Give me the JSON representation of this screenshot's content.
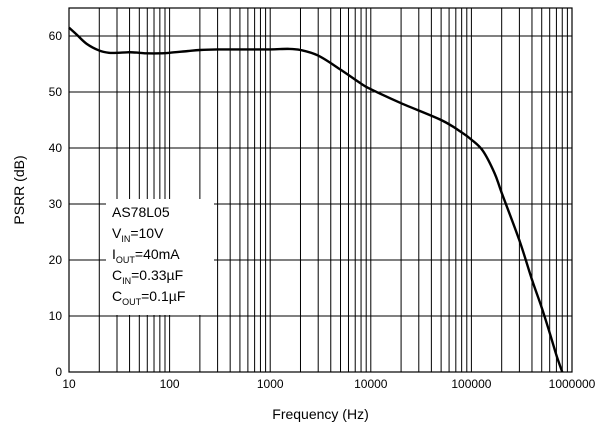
{
  "chart_data": {
    "type": "line",
    "title": "",
    "xlabel": "Frequency (Hz)",
    "ylabel": "PSRR (dB)",
    "x_scale": "log",
    "xlim": [
      10,
      1000000
    ],
    "ylim": [
      0,
      65
    ],
    "grid": true,
    "x_ticks": [
      10,
      100,
      1000,
      10000,
      100000,
      1000000
    ],
    "x_tick_labels": [
      "10",
      "100",
      "1000",
      "10000",
      "100000",
      "1000000"
    ],
    "y_ticks": [
      0,
      10,
      20,
      30,
      40,
      50,
      60
    ],
    "y_tick_labels": [
      "0",
      "10",
      "20",
      "30",
      "40",
      "50",
      "60"
    ],
    "series": [
      {
        "color": "#000000",
        "points": [
          [
            10,
            61.5
          ],
          [
            12,
            60.2
          ],
          [
            15,
            58.6
          ],
          [
            20,
            57.4
          ],
          [
            25,
            57.0
          ],
          [
            30,
            57.0
          ],
          [
            40,
            57.1
          ],
          [
            50,
            57.0
          ],
          [
            60,
            56.9
          ],
          [
            80,
            56.9
          ],
          [
            100,
            57.0
          ],
          [
            150,
            57.3
          ],
          [
            200,
            57.5
          ],
          [
            300,
            57.6
          ],
          [
            500,
            57.6
          ],
          [
            1000,
            57.6
          ],
          [
            1500,
            57.7
          ],
          [
            2000,
            57.5
          ],
          [
            3000,
            56.5
          ],
          [
            5000,
            54.0
          ],
          [
            8000,
            51.5
          ],
          [
            10000,
            50.5
          ],
          [
            20000,
            48.0
          ],
          [
            50000,
            45.0
          ],
          [
            80000,
            42.8
          ],
          [
            100000,
            41.5
          ],
          [
            130000,
            39.5
          ],
          [
            170000,
            35.5
          ],
          [
            200000,
            32.0
          ],
          [
            300000,
            23.5
          ],
          [
            400000,
            16.5
          ],
          [
            500000,
            11.5
          ],
          [
            600000,
            7.0
          ],
          [
            700000,
            3.0
          ],
          [
            800000,
            0
          ]
        ]
      }
    ],
    "annotation": {
      "lines": [
        {
          "main": "AS78L05",
          "sub": "",
          "tail": ""
        },
        {
          "main": "V",
          "sub": "IN",
          "tail": "=10V"
        },
        {
          "main": "I",
          "sub": "OUT",
          "tail": "=40mA"
        },
        {
          "main": "C",
          "sub": "IN",
          "tail": "=0.33µF"
        },
        {
          "main": "C",
          "sub": "OUT",
          "tail": "=0.1µF"
        }
      ]
    }
  }
}
